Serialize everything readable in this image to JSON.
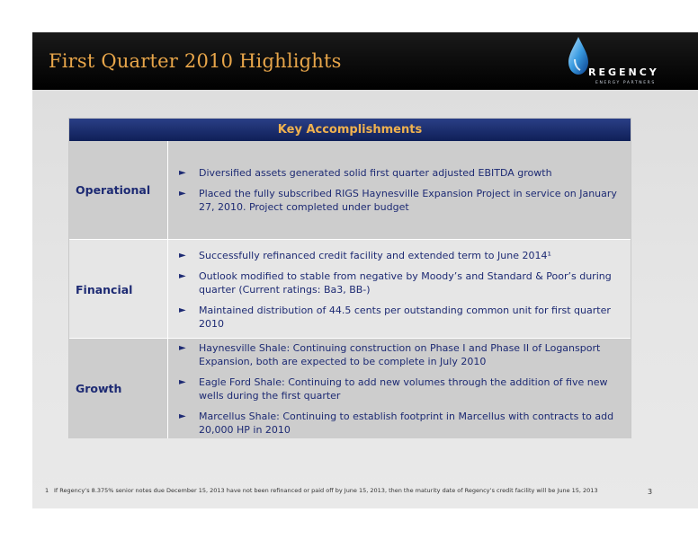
{
  "header": {
    "title": "First Quarter 2010 Highlights",
    "logo": {
      "word": "REGENCY",
      "tagline": "ENERGY PARTNERS",
      "icon": "flame-drop-icon"
    }
  },
  "table": {
    "heading": "Key Accomplishments",
    "bullet_glyph": "►",
    "rows": [
      {
        "label": "Operational",
        "items": [
          "Diversified assets generated solid first quarter adjusted EBITDA growth",
          "Placed the fully subscribed RIGS Haynesville Expansion Project in service on January 27, 2010.  Project completed under budget"
        ]
      },
      {
        "label": "Financial",
        "items": [
          "Successfully refinanced credit facility and extended term to June 2014¹",
          "Outlook modified to stable from negative by Moody’s and Standard & Poor’s during quarter (Current ratings: Ba3, BB-)",
          "Maintained distribution of 44.5 cents per outstanding common unit for first quarter 2010"
        ]
      },
      {
        "label": "Growth",
        "items": [
          "Haynesville Shale: Continuing construction on Phase I and Phase II of Logansport Expansion, both are expected to be complete in July 2010",
          "Eagle Ford Shale: Continuing to add new volumes through the addition of five new wells during the first quarter",
          "Marcellus Shale: Continuing to establish footprint in Marcellus with contracts to add 20,000 HP in 2010"
        ]
      }
    ]
  },
  "footnote": {
    "number": "1",
    "text": "If Regency’s 8.375% senior notes due December 15, 2013 have not been refinanced or paid off by June 15, 2013, then the maturity date of Regency’s credit facility will be June 15, 2013"
  },
  "page_number": "3",
  "colors": {
    "header_bg": "#000000",
    "title": "#e8a64a",
    "table_heading_bg": "#1a2c6e",
    "table_heading_text": "#f0b24f",
    "body_text": "#1d2a73",
    "row_dark": "#cdcdcd",
    "row_light": "#e6e6e6"
  }
}
